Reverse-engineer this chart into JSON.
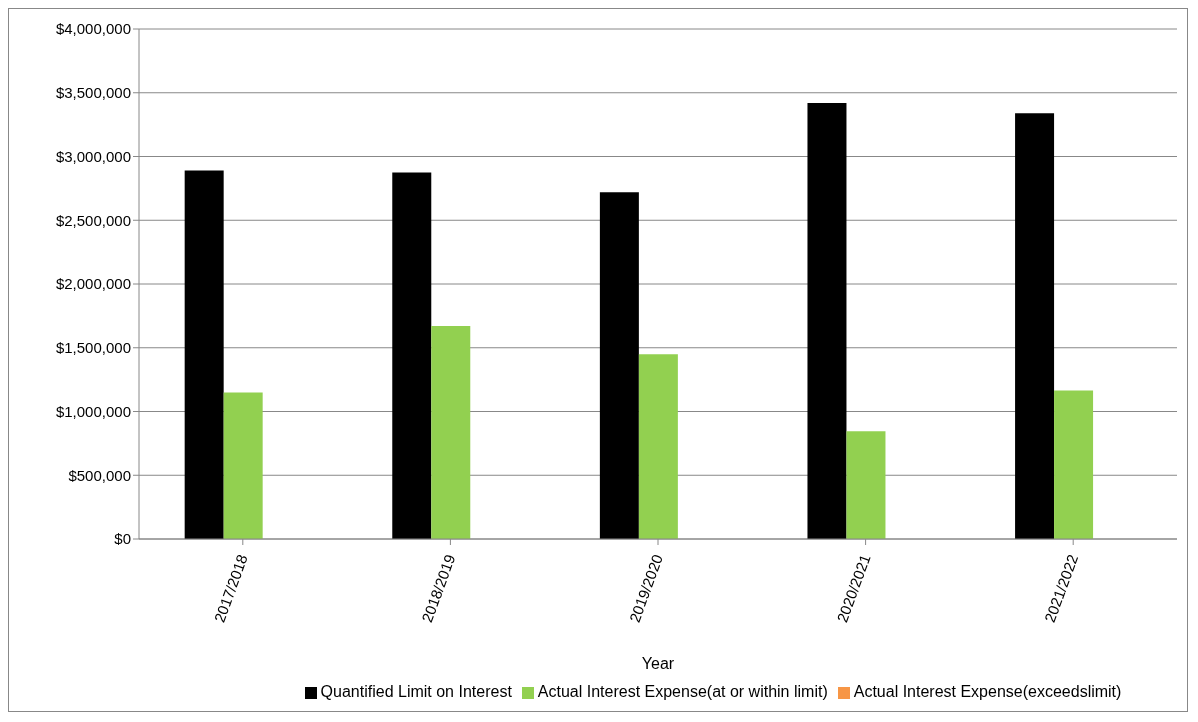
{
  "chart_data": {
    "type": "bar",
    "xlabel": "Year",
    "categories": [
      "2017/2018",
      "2018/2019",
      "2019/2020",
      "2020/2021",
      "2021/2022"
    ],
    "series": [
      {
        "name": "Quantified Limit on Interest",
        "color": "#000000",
        "values": [
          2890000,
          2875000,
          2720000,
          3420000,
          3340000
        ]
      },
      {
        "name": "Actual Interest Expense(at or within limit)",
        "color": "#92d050",
        "values": [
          1150000,
          1670000,
          1450000,
          845000,
          1165000
        ]
      },
      {
        "name": "Actual Interest Expense(exceedslimit)",
        "color": "#f79646",
        "values": [
          null,
          null,
          null,
          null,
          null
        ]
      }
    ],
    "ylim": [
      0,
      4000000
    ],
    "yticks": [
      {
        "value": 0,
        "label": "$0"
      },
      {
        "value": 500000,
        "label": "$500,000"
      },
      {
        "value": 1000000,
        "label": "$1,000,000"
      },
      {
        "value": 1500000,
        "label": "$1,500,000"
      },
      {
        "value": 2000000,
        "label": "$2,000,000"
      },
      {
        "value": 2500000,
        "label": "$2,500,000"
      },
      {
        "value": 3000000,
        "label": "$3,000,000"
      },
      {
        "value": 3500000,
        "label": "$3,500,000"
      },
      {
        "value": 4000000,
        "label": "$4,000,000"
      }
    ],
    "grid": "y",
    "legend": "bottom"
  }
}
